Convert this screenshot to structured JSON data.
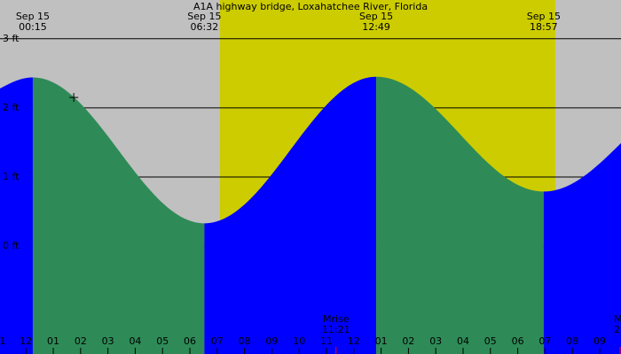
{
  "chart_data": {
    "type": "tide",
    "title": "A1A highway bridge, Loxahatchee River, Florida",
    "x": [
      -0.95,
      0.25,
      6.53,
      12.82,
      18.95,
      21.78
    ],
    "y": [
      2.28,
      2.44,
      0.33,
      2.45,
      0.79,
      1.49
    ],
    "dates": [
      null,
      "Sep 15",
      "Sep 15",
      "Sep 15",
      "Sep 15",
      null
    ],
    "times": [
      null,
      "00:15",
      "06:32",
      "12:49",
      "18:57",
      null
    ],
    "rising_color": "#0000ff",
    "falling_color": "#2e8b57",
    "night_color": "#c0c0c0",
    "day_color": "#cccc00",
    "daylight": [
      7.1,
      19.38
    ],
    "xlim": [
      -0.95,
      21.78
    ],
    "ylim": [
      -1.56,
      3.56
    ],
    "yticks": [
      {
        "value": 0,
        "label": "0 ft"
      },
      {
        "value": 1,
        "label": "1 ft"
      },
      {
        "value": 2,
        "label": "2 ft"
      },
      {
        "value": 3,
        "label": "3 ft"
      }
    ],
    "xticks": [
      {
        "value": -1,
        "label": "1"
      },
      {
        "value": 0,
        "label": "12"
      },
      {
        "value": 1,
        "label": "01"
      },
      {
        "value": 2,
        "label": "02"
      },
      {
        "value": 3,
        "label": "03"
      },
      {
        "value": 4,
        "label": "04"
      },
      {
        "value": 5,
        "label": "05"
      },
      {
        "value": 6,
        "label": "06"
      },
      {
        "value": 7,
        "label": "07"
      },
      {
        "value": 8,
        "label": "08"
      },
      {
        "value": 9,
        "label": "09"
      },
      {
        "value": 10,
        "label": "10"
      },
      {
        "value": 11,
        "label": "11"
      },
      {
        "value": 12,
        "label": "12"
      },
      {
        "value": 13,
        "label": "01"
      },
      {
        "value": 14,
        "label": "02"
      },
      {
        "value": 15,
        "label": "03"
      },
      {
        "value": 16,
        "label": "04"
      },
      {
        "value": 17,
        "label": "05"
      },
      {
        "value": 18,
        "label": "06"
      },
      {
        "value": 19,
        "label": "07"
      },
      {
        "value": 20,
        "label": "08"
      },
      {
        "value": 21,
        "label": "09"
      }
    ],
    "moon_events": [
      {
        "label": "Mrise",
        "time": "11:21",
        "x": 11.35
      },
      {
        "label": "M",
        "time": "2",
        "x": 21.75
      }
    ],
    "marker": {
      "x": 1.75,
      "y": 2.15
    }
  }
}
